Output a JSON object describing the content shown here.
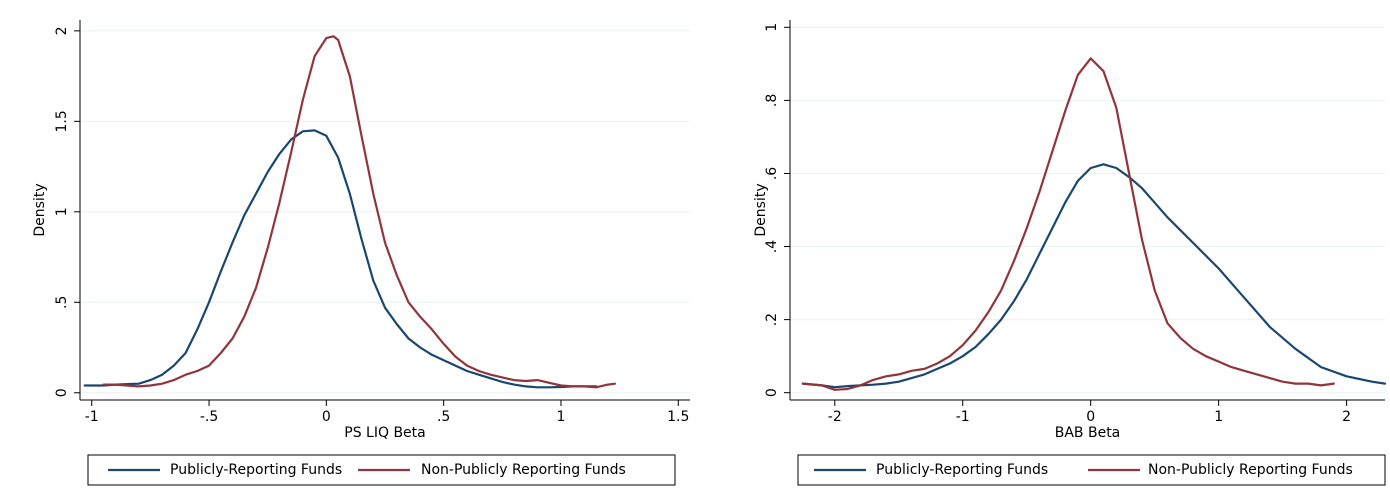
{
  "chart_data": [
    {
      "type": "line",
      "xlabel": "PS LIQ Beta",
      "ylabel": "Density",
      "xlim": [
        -1.05,
        1.55
      ],
      "ylim": [
        -0.04,
        2.06
      ],
      "xticks": [
        -1,
        -0.5,
        0,
        0.5,
        1,
        1.5
      ],
      "xtick_labels": [
        "-1",
        "-.5",
        "0",
        ".5",
        "1",
        "1.5"
      ],
      "yticks": [
        0,
        0.5,
        1,
        1.5,
        2
      ],
      "ytick_labels": [
        "0",
        ".5",
        "1",
        "1.5",
        "2"
      ],
      "grid": true,
      "legend_position": "bottom",
      "series": [
        {
          "name": "Publicly-Reporting Funds",
          "color": "#1a476f",
          "x": [
            -1.03,
            -0.95,
            -0.9,
            -0.8,
            -0.75,
            -0.7,
            -0.65,
            -0.6,
            -0.55,
            -0.5,
            -0.45,
            -0.4,
            -0.35,
            -0.3,
            -0.25,
            -0.2,
            -0.15,
            -0.1,
            -0.05,
            0,
            0.05,
            0.1,
            0.15,
            0.2,
            0.25,
            0.3,
            0.35,
            0.4,
            0.45,
            0.5,
            0.55,
            0.6,
            0.65,
            0.7,
            0.75,
            0.8,
            0.85,
            0.9,
            0.95,
            1.0,
            1.05,
            1.1,
            1.15
          ],
          "y": [
            0.04,
            0.04,
            0.045,
            0.05,
            0.07,
            0.1,
            0.15,
            0.22,
            0.35,
            0.5,
            0.67,
            0.83,
            0.98,
            1.1,
            1.22,
            1.32,
            1.4,
            1.445,
            1.45,
            1.42,
            1.3,
            1.1,
            0.85,
            0.62,
            0.47,
            0.38,
            0.3,
            0.25,
            0.21,
            0.18,
            0.15,
            0.12,
            0.1,
            0.08,
            0.06,
            0.045,
            0.035,
            0.03,
            0.03,
            0.032,
            0.035,
            0.035,
            0.035
          ]
        },
        {
          "name": "Non-Publicly Reporting Funds",
          "color": "#90353b",
          "x": [
            -0.95,
            -0.9,
            -0.85,
            -0.8,
            -0.75,
            -0.7,
            -0.65,
            -0.6,
            -0.55,
            -0.5,
            -0.45,
            -0.4,
            -0.35,
            -0.3,
            -0.25,
            -0.2,
            -0.15,
            -0.1,
            -0.05,
            0,
            0.03,
            0.05,
            0.1,
            0.15,
            0.2,
            0.25,
            0.3,
            0.35,
            0.4,
            0.45,
            0.5,
            0.55,
            0.6,
            0.65,
            0.7,
            0.75,
            0.8,
            0.85,
            0.9,
            0.95,
            1.0,
            1.05,
            1.1,
            1.15,
            1.2,
            1.23
          ],
          "y": [
            0.045,
            0.045,
            0.04,
            0.035,
            0.04,
            0.05,
            0.07,
            0.1,
            0.12,
            0.15,
            0.22,
            0.3,
            0.42,
            0.58,
            0.8,
            1.05,
            1.33,
            1.62,
            1.86,
            1.96,
            1.97,
            1.95,
            1.75,
            1.42,
            1.1,
            0.83,
            0.65,
            0.5,
            0.42,
            0.35,
            0.27,
            0.2,
            0.15,
            0.12,
            0.1,
            0.085,
            0.07,
            0.065,
            0.07,
            0.055,
            0.04,
            0.035,
            0.035,
            0.03,
            0.045,
            0.05
          ]
        }
      ]
    },
    {
      "type": "line",
      "xlabel": "BAB Beta",
      "ylabel": "Density",
      "xlim": [
        -2.35,
        2.3
      ],
      "ylim": [
        -0.02,
        1.02
      ],
      "xticks": [
        -2,
        -1,
        0,
        1,
        2
      ],
      "xtick_labels": [
        "-2",
        "-1",
        "0",
        "1",
        "2"
      ],
      "yticks": [
        0,
        0.2,
        0.4,
        0.6,
        0.8,
        1
      ],
      "ytick_labels": [
        "0",
        ".2",
        ".4",
        ".6",
        ".8",
        "1"
      ],
      "grid": true,
      "legend_position": "bottom",
      "series": [
        {
          "name": "Publicly-Reporting Funds",
          "color": "#1a476f",
          "x": [
            -2.25,
            -2.1,
            -2.0,
            -1.9,
            -1.8,
            -1.7,
            -1.6,
            -1.5,
            -1.4,
            -1.3,
            -1.2,
            -1.1,
            -1.0,
            -0.9,
            -0.8,
            -0.7,
            -0.6,
            -0.5,
            -0.4,
            -0.3,
            -0.2,
            -0.1,
            0,
            0.1,
            0.2,
            0.3,
            0.4,
            0.5,
            0.6,
            0.8,
            1.0,
            1.2,
            1.4,
            1.6,
            1.8,
            2.0,
            2.2,
            2.3
          ],
          "y": [
            0.025,
            0.02,
            0.015,
            0.018,
            0.02,
            0.022,
            0.025,
            0.03,
            0.04,
            0.05,
            0.065,
            0.08,
            0.1,
            0.125,
            0.16,
            0.2,
            0.25,
            0.31,
            0.38,
            0.45,
            0.52,
            0.58,
            0.615,
            0.625,
            0.615,
            0.59,
            0.56,
            0.52,
            0.48,
            0.41,
            0.34,
            0.26,
            0.18,
            0.12,
            0.07,
            0.045,
            0.03,
            0.025
          ]
        },
        {
          "name": "Non-Publicly Reporting Funds",
          "color": "#90353b",
          "x": [
            -2.25,
            -2.1,
            -2.0,
            -1.9,
            -1.8,
            -1.7,
            -1.6,
            -1.5,
            -1.4,
            -1.3,
            -1.2,
            -1.1,
            -1.0,
            -0.9,
            -0.8,
            -0.7,
            -0.6,
            -0.5,
            -0.4,
            -0.3,
            -0.2,
            -0.1,
            0,
            0.1,
            0.2,
            0.3,
            0.4,
            0.5,
            0.6,
            0.7,
            0.8,
            0.9,
            1.0,
            1.1,
            1.2,
            1.3,
            1.4,
            1.5,
            1.6,
            1.7,
            1.8,
            1.9
          ],
          "y": [
            0.025,
            0.02,
            0.008,
            0.01,
            0.02,
            0.035,
            0.045,
            0.05,
            0.06,
            0.065,
            0.08,
            0.1,
            0.13,
            0.17,
            0.22,
            0.28,
            0.36,
            0.45,
            0.55,
            0.66,
            0.77,
            0.87,
            0.915,
            0.88,
            0.78,
            0.6,
            0.42,
            0.28,
            0.19,
            0.15,
            0.12,
            0.1,
            0.085,
            0.07,
            0.06,
            0.05,
            0.04,
            0.03,
            0.025,
            0.025,
            0.02,
            0.025
          ]
        }
      ]
    }
  ]
}
